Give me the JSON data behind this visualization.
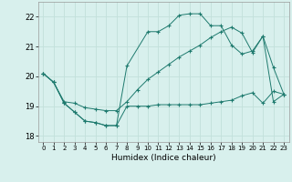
{
  "xlabel": "Humidex (Indice chaleur)",
  "background_color": "#d8f0ed",
  "grid_color": "#c2e0db",
  "line_color": "#1e7a6e",
  "xlim": [
    -0.5,
    23.5
  ],
  "ylim": [
    17.8,
    22.5
  ],
  "yticks": [
    18,
    19,
    20,
    21,
    22
  ],
  "xticks": [
    0,
    1,
    2,
    3,
    4,
    5,
    6,
    7,
    8,
    9,
    10,
    11,
    12,
    13,
    14,
    15,
    16,
    17,
    18,
    19,
    20,
    21,
    22,
    23
  ],
  "line_main_x": [
    0,
    1,
    2,
    3,
    4,
    5,
    6,
    7,
    8,
    10,
    11,
    12,
    13,
    14,
    15,
    16,
    17,
    18,
    19,
    20,
    21,
    22,
    23
  ],
  "line_main_y": [
    20.1,
    19.8,
    19.1,
    18.8,
    18.5,
    18.45,
    18.35,
    18.35,
    20.35,
    21.5,
    21.5,
    21.7,
    22.05,
    22.1,
    22.1,
    21.7,
    21.7,
    21.05,
    20.75,
    20.85,
    21.35,
    20.3,
    19.4
  ],
  "line_upper_x": [
    0,
    1,
    2,
    3,
    4,
    5,
    6,
    7,
    8,
    9,
    10,
    11,
    12,
    13,
    14,
    15,
    16,
    17,
    18,
    19,
    20,
    21,
    22,
    23
  ],
  "line_upper_y": [
    20.1,
    19.8,
    19.15,
    19.1,
    18.95,
    18.9,
    18.85,
    18.85,
    19.15,
    19.55,
    19.9,
    20.15,
    20.4,
    20.65,
    20.85,
    21.05,
    21.3,
    21.5,
    21.65,
    21.45,
    20.8,
    21.35,
    19.15,
    19.4
  ],
  "line_lower_x": [
    0,
    1,
    2,
    3,
    4,
    5,
    6,
    7,
    8,
    9,
    10,
    11,
    12,
    13,
    14,
    15,
    16,
    17,
    18,
    19,
    20,
    21,
    22,
    23
  ],
  "line_lower_y": [
    20.1,
    19.8,
    19.1,
    18.8,
    18.5,
    18.45,
    18.35,
    18.35,
    19.0,
    19.0,
    19.0,
    19.05,
    19.05,
    19.05,
    19.05,
    19.05,
    19.1,
    19.15,
    19.2,
    19.35,
    19.45,
    19.1,
    19.5,
    19.4
  ]
}
